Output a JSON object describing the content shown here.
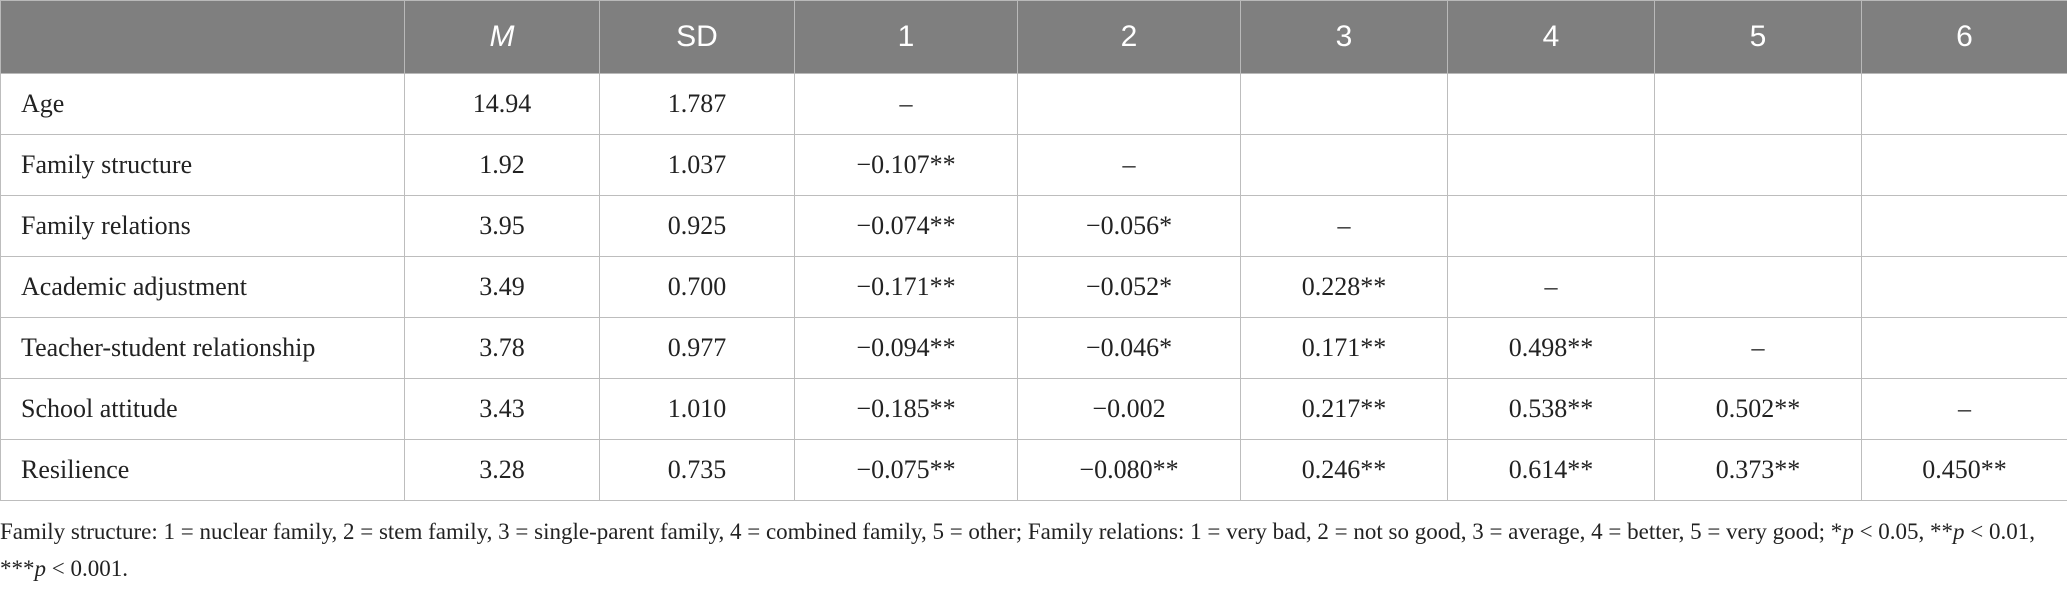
{
  "table": {
    "headers": [
      "",
      "M",
      "SD",
      "1",
      "2",
      "3",
      "4",
      "5",
      "6"
    ],
    "rows": [
      {
        "label": "Age",
        "cells": [
          "14.94",
          "1.787",
          "–",
          "",
          "",
          "",
          "",
          ""
        ]
      },
      {
        "label": "Family structure",
        "cells": [
          "1.92",
          "1.037",
          "−0.107**",
          "–",
          "",
          "",
          "",
          ""
        ]
      },
      {
        "label": "Family relations",
        "cells": [
          "3.95",
          "0.925",
          "−0.074**",
          "−0.056*",
          "–",
          "",
          "",
          ""
        ]
      },
      {
        "label": "Academic adjustment",
        "cells": [
          "3.49",
          "0.700",
          "−0.171**",
          "−0.052*",
          "0.228**",
          "–",
          "",
          ""
        ]
      },
      {
        "label": "Teacher-student relationship",
        "cells": [
          "3.78",
          "0.977",
          "−0.094**",
          "−0.046*",
          "0.171**",
          "0.498**",
          "–",
          ""
        ]
      },
      {
        "label": "School attitude",
        "cells": [
          "3.43",
          "1.010",
          "−0.185**",
          "−0.002",
          "0.217**",
          "0.538**",
          "0.502**",
          "–"
        ]
      },
      {
        "label": "Resilience",
        "cells": [
          "3.28",
          "0.735",
          "−0.075**",
          "−0.080**",
          "0.246**",
          "0.614**",
          "0.373**",
          "0.450**"
        ]
      }
    ]
  },
  "footnote": {
    "part1": "Family structure: 1 = nuclear family, 2 = stem family, 3 = single-parent family, 4 = combined family, 5 = other; Family relations: 1 = very bad, 2 = not so good, 3 = average, 4 = better, 5 = very good; *",
    "p1": "p",
    "part2": " < 0.05, **",
    "p2": "p",
    "part3": " < 0.01, ***",
    "p3": "p",
    "part4": " < 0.001."
  }
}
